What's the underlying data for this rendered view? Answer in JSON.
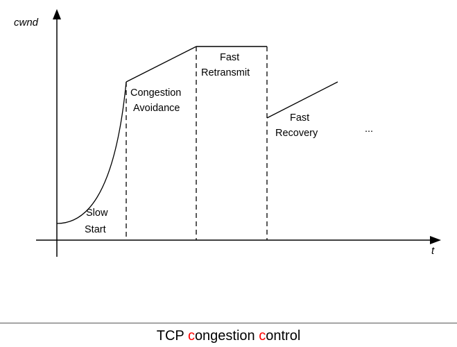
{
  "axes": {
    "y_label": "cwnd",
    "x_label": "t"
  },
  "phases": [
    {
      "label_line1": "Slow",
      "label_line2": "Start"
    },
    {
      "label_line1": "Congestion",
      "label_line2": "Avoidance"
    },
    {
      "label_line1": "Fast",
      "label_line2": "Retransmit"
    },
    {
      "label_line1": "Fast",
      "label_line2": "Recovery"
    }
  ],
  "continuation": "...",
  "caption": {
    "part1": "TCP ",
    "part2": "c",
    "part3": "ongestion ",
    "part4": "c",
    "part5": "ontrol",
    "highlight_color": "#ff0000"
  }
}
